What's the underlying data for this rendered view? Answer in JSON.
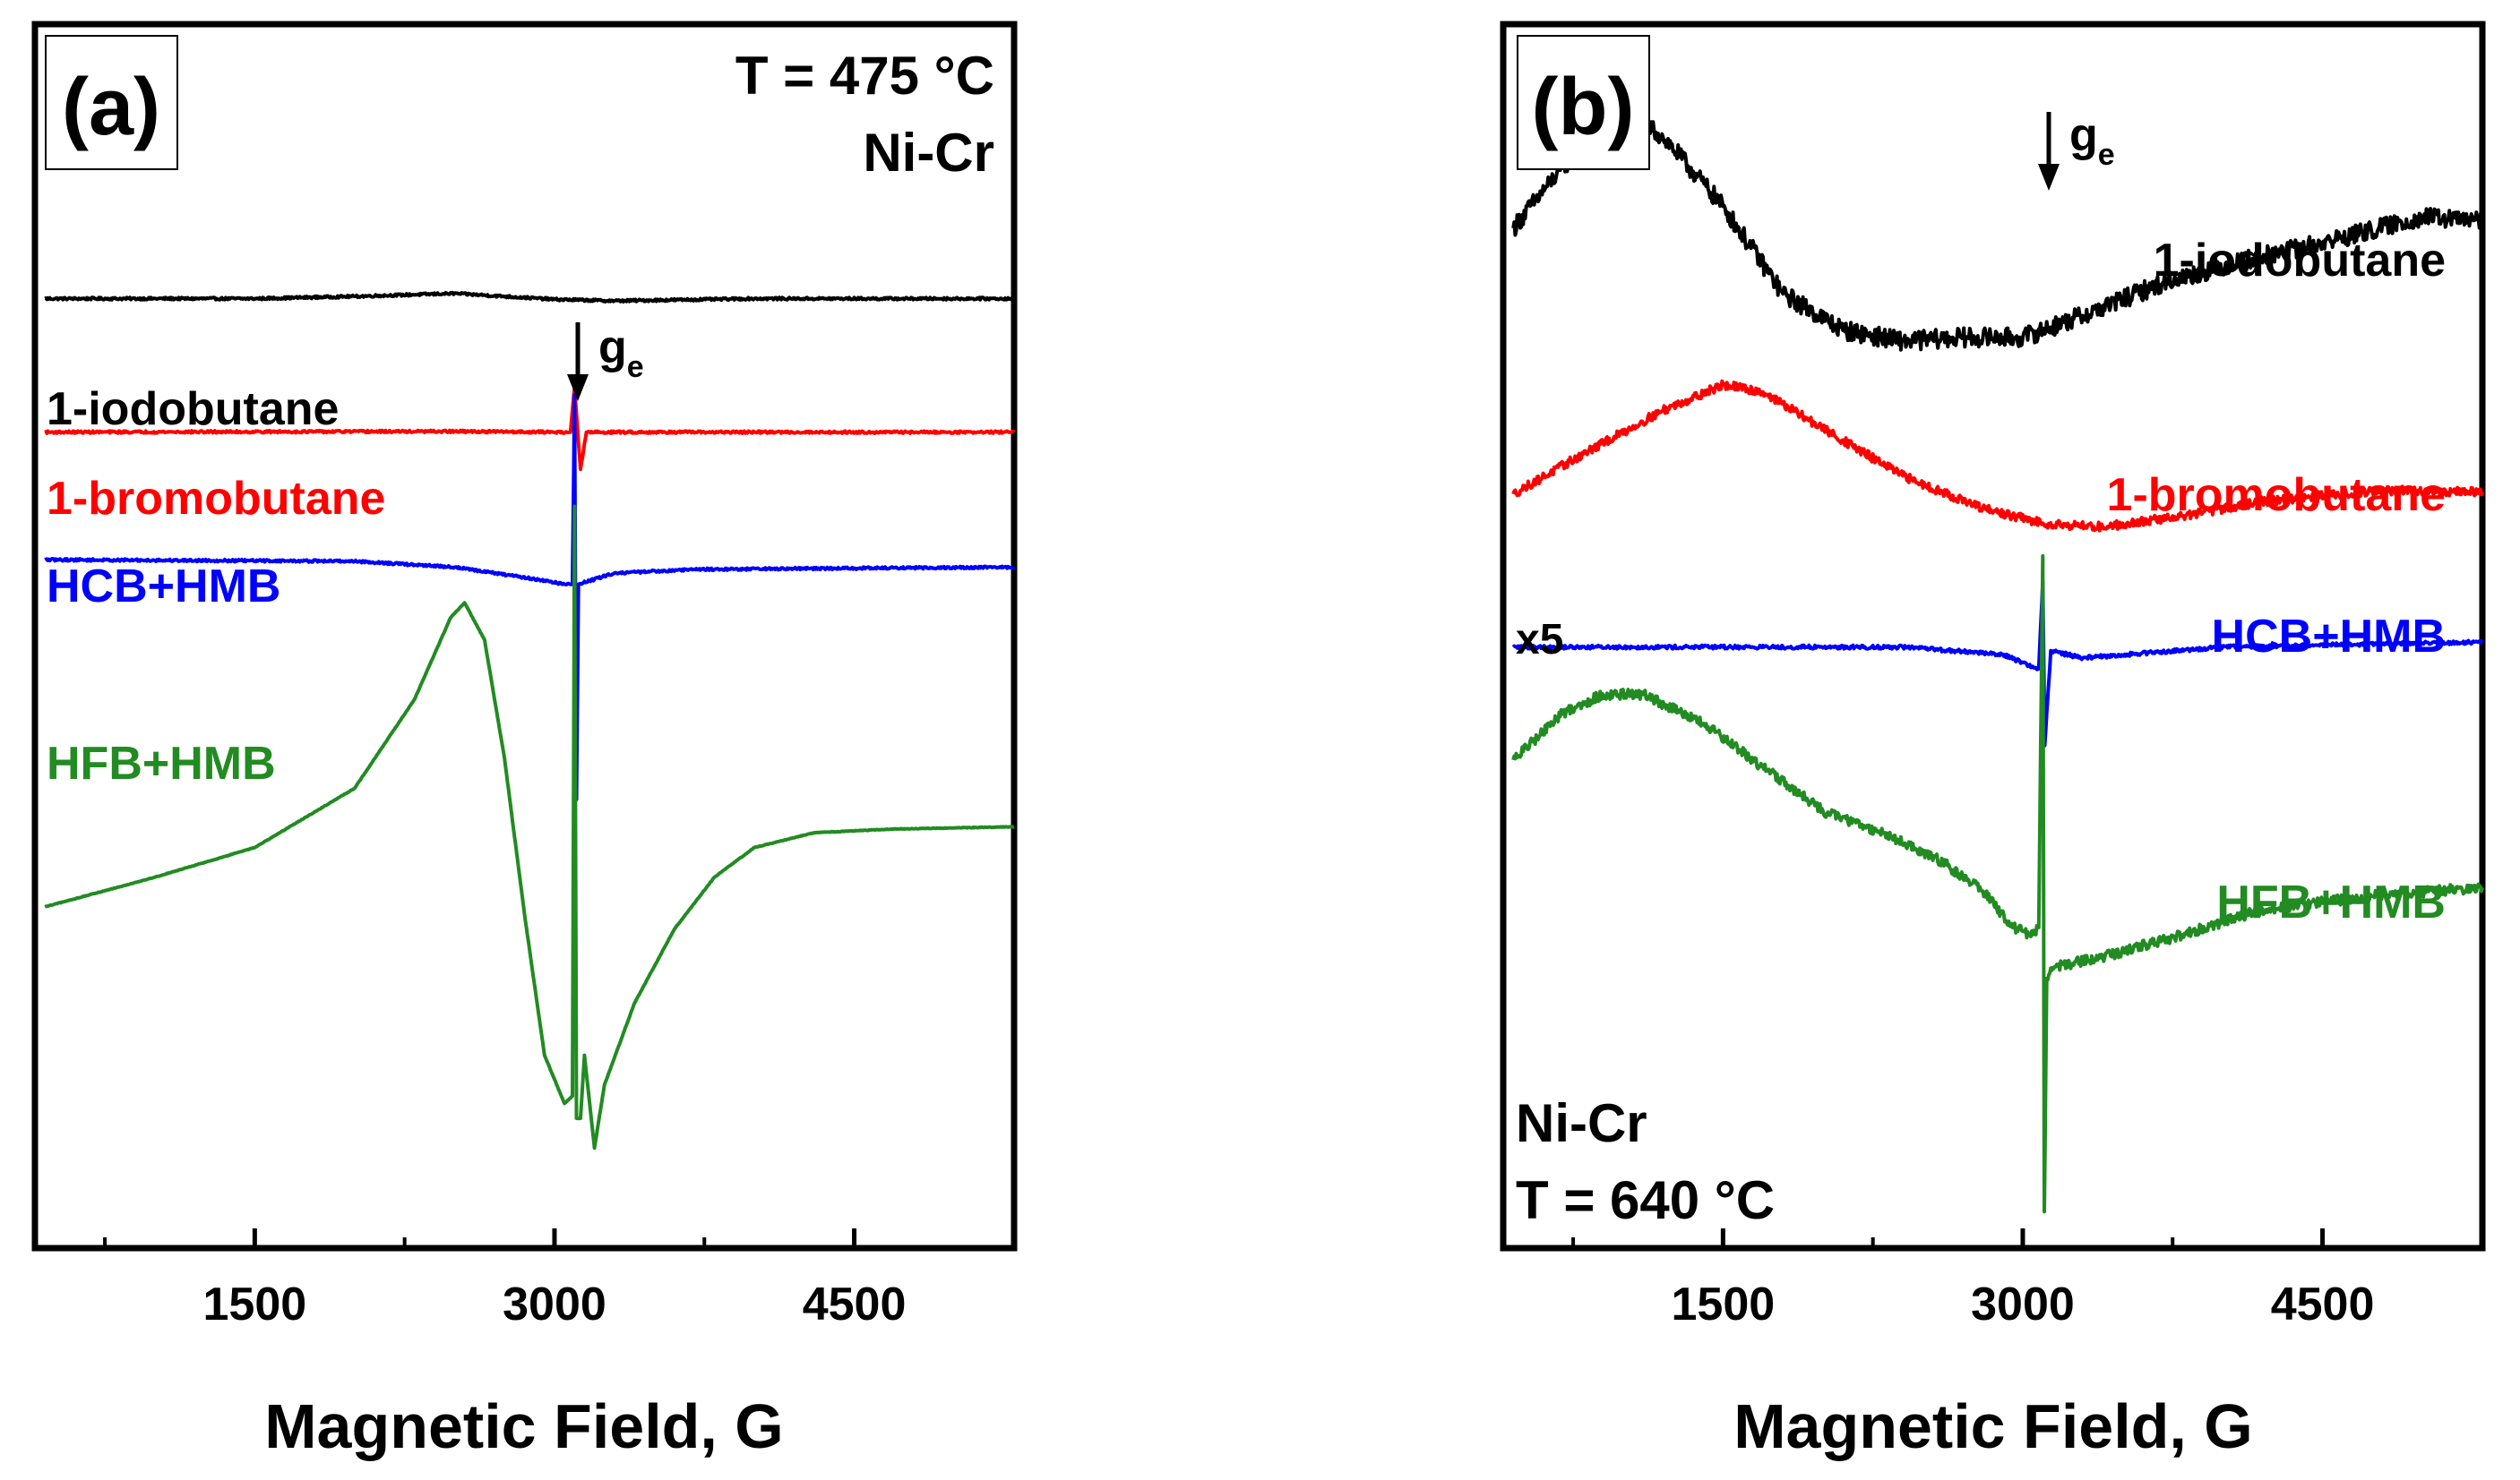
{
  "chart_data": [
    {
      "type": "line",
      "panel_label": "(a)",
      "annotations": [
        "T = 475 °C",
        "Ni-Cr"
      ],
      "ge_marker": {
        "label": "g",
        "subscript": "e",
        "x": 3100
      },
      "xlabel": "Magnetic Field, G",
      "ylabel": "",
      "xlim": [
        400,
        5300
      ],
      "ylim": [
        -8,
        8.5
      ],
      "x_ticks": [
        1500,
        3000,
        4500
      ],
      "x_minor_ticks": [
        750,
        2250,
        3750
      ],
      "y_ticks": false,
      "series": [
        {
          "name": "1-iodobutane",
          "color": "#000000",
          "noise": 0.015,
          "points": [
            [
              450,
              4.8
            ],
            [
              1500,
              4.8
            ],
            [
              2000,
              4.83
            ],
            [
              2500,
              4.87
            ],
            [
              3000,
              4.79
            ],
            [
              3300,
              4.77
            ],
            [
              4000,
              4.8
            ],
            [
              5300,
              4.8
            ]
          ]
        },
        {
          "name": "1-bromobutane",
          "color": "#ff0000",
          "noise": 0.015,
          "points": [
            [
              450,
              3.0
            ],
            [
              2500,
              3.01
            ],
            [
              3080,
              3.0
            ],
            [
              3100,
              3.6
            ],
            [
              3130,
              2.5
            ],
            [
              3160,
              3.0
            ],
            [
              5300,
              3.0
            ]
          ]
        },
        {
          "name": "HCB+HMB",
          "color": "#0000ff",
          "noise": 0.015,
          "points": [
            [
              450,
              1.28
            ],
            [
              2000,
              1.26
            ],
            [
              2500,
              1.18
            ],
            [
              2900,
              1.02
            ],
            [
              3050,
              0.95
            ],
            [
              3090,
              0.95
            ],
            [
              3100,
              3.5
            ],
            [
              3110,
              -1.95
            ],
            [
              3120,
              0.95
            ],
            [
              3300,
              1.1
            ],
            [
              3700,
              1.15
            ],
            [
              5300,
              1.18
            ]
          ]
        },
        {
          "name": "HFB+HMB",
          "color": "#228b22",
          "noise": 0.004,
          "points": [
            [
              450,
              -3.4
            ],
            [
              1000,
              -3.0
            ],
            [
              1500,
              -2.6
            ],
            [
              2000,
              -1.8
            ],
            [
              2300,
              -0.6
            ],
            [
              2480,
              0.5
            ],
            [
              2550,
              0.7
            ],
            [
              2650,
              0.2
            ],
            [
              2750,
              -1.4
            ],
            [
              2850,
              -3.5
            ],
            [
              2950,
              -5.4
            ],
            [
              3050,
              -6.05
            ],
            [
              3090,
              -5.95
            ],
            [
              3100,
              2.0
            ],
            [
              3110,
              -6.25
            ],
            [
              3130,
              -6.25
            ],
            [
              3150,
              -5.4
            ],
            [
              3200,
              -6.65
            ],
            [
              3250,
              -5.8
            ],
            [
              3400,
              -4.7
            ],
            [
              3600,
              -3.7
            ],
            [
              3800,
              -3.0
            ],
            [
              4000,
              -2.6
            ],
            [
              4300,
              -2.4
            ],
            [
              4700,
              -2.35
            ],
            [
              5300,
              -2.32
            ]
          ]
        }
      ],
      "legend_labels": [
        "1-iodobutane",
        "1-bromobutane",
        "HCB+HMB",
        "HFB+HMB"
      ]
    },
    {
      "type": "line",
      "panel_label": "(b)",
      "annotations": [
        "Ni-Cr",
        "T = 640 °C",
        "x5"
      ],
      "ge_marker": {
        "label": "g",
        "subscript": "e",
        "x": 3100
      },
      "xlabel": "Magnetic Field, G",
      "ylabel": "",
      "xlim": [
        400,
        5300
      ],
      "ylim": [
        -8.3,
        8.5
      ],
      "x_ticks": [
        1500,
        3000,
        4500
      ],
      "x_minor_ticks": [
        750,
        2250,
        3750
      ],
      "y_ticks": false,
      "series": [
        {
          "name": "1-iodobutane",
          "color": "#000000",
          "noise": 0.13,
          "points": [
            [
              450,
              5.7
            ],
            [
              700,
              6.55
            ],
            [
              900,
              7.05
            ],
            [
              1050,
              7.25
            ],
            [
              1200,
              6.95
            ],
            [
              1500,
              6.0
            ],
            [
              1800,
              4.8
            ],
            [
              2100,
              4.3
            ],
            [
              2400,
              4.15
            ],
            [
              2700,
              4.2
            ],
            [
              3000,
              4.2
            ],
            [
              3300,
              4.5
            ],
            [
              3700,
              4.95
            ],
            [
              4100,
              5.25
            ],
            [
              4500,
              5.5
            ],
            [
              5000,
              5.85
            ],
            [
              5300,
              5.8
            ]
          ]
        },
        {
          "name": "1-bromobutane",
          "color": "#ff0000",
          "noise": 0.06,
          "points": [
            [
              450,
              2.05
            ],
            [
              800,
              2.6
            ],
            [
              1200,
              3.2
            ],
            [
              1500,
              3.55
            ],
            [
              1700,
              3.45
            ],
            [
              2000,
              2.95
            ],
            [
              2400,
              2.3
            ],
            [
              2800,
              1.85
            ],
            [
              3100,
              1.65
            ],
            [
              3400,
              1.6
            ],
            [
              3800,
              1.75
            ],
            [
              4200,
              1.95
            ],
            [
              4800,
              2.1
            ],
            [
              5300,
              2.08
            ]
          ]
        },
        {
          "name": "HCB+HMB",
          "color": "#0000ff",
          "noise": 0.025,
          "points": [
            [
              450,
              -0.05
            ],
            [
              1500,
              -0.05
            ],
            [
              2400,
              -0.05
            ],
            [
              2900,
              -0.15
            ],
            [
              3030,
              -0.3
            ],
            [
              3080,
              -0.35
            ],
            [
              3100,
              0.85
            ],
            [
              3110,
              -1.4
            ],
            [
              3140,
              -0.1
            ],
            [
              3300,
              -0.2
            ],
            [
              4000,
              -0.05
            ],
            [
              5300,
              0.02
            ]
          ]
        },
        {
          "name": "HFB+HMB",
          "color": "#228b22",
          "noise": 0.07,
          "points": [
            [
              450,
              -1.6
            ],
            [
              700,
              -0.95
            ],
            [
              900,
              -0.7
            ],
            [
              1100,
              -0.7
            ],
            [
              1400,
              -1.1
            ],
            [
              1700,
              -1.7
            ],
            [
              2000,
              -2.3
            ],
            [
              2300,
              -2.6
            ],
            [
              2600,
              -3.0
            ],
            [
              2800,
              -3.4
            ],
            [
              2950,
              -3.9
            ],
            [
              3050,
              -4.0
            ],
            [
              3080,
              -3.9
            ],
            [
              3100,
              1.2
            ],
            [
              3108,
              -7.8
            ],
            [
              3120,
              -4.6
            ],
            [
              3150,
              -4.45
            ],
            [
              3400,
              -4.3
            ],
            [
              3800,
              -4.0
            ],
            [
              4200,
              -3.65
            ],
            [
              4800,
              -3.45
            ],
            [
              5300,
              -3.35
            ]
          ]
        }
      ],
      "legend_labels": [
        "1-iodobutane",
        "1-bromobutane",
        "HCB+HMB",
        "HFB+HMB"
      ]
    }
  ]
}
